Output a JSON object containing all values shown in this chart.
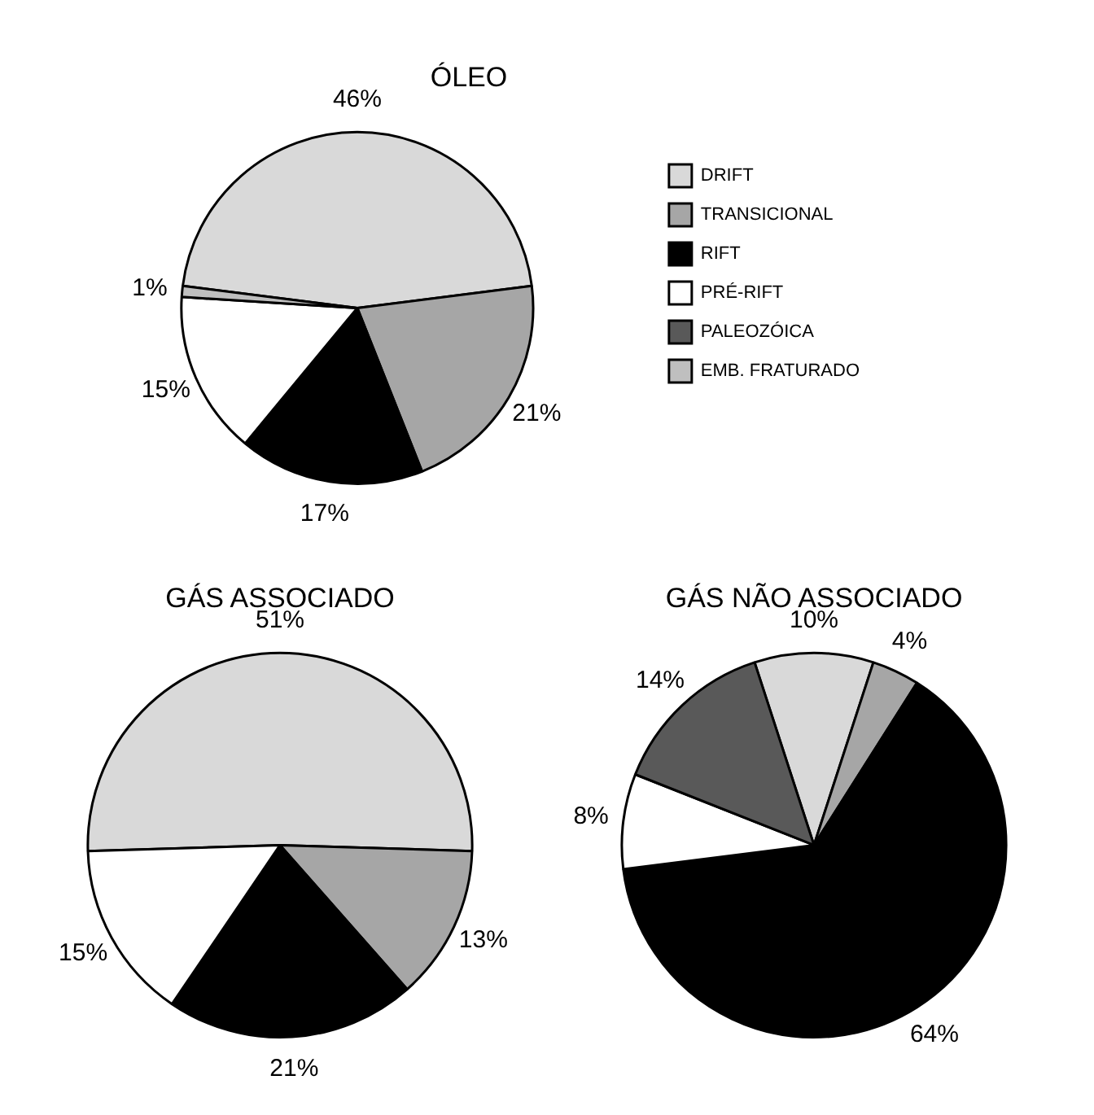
{
  "chart_data": [
    {
      "type": "pie",
      "title": "ÓLEO",
      "categories": [
        "DRIFT",
        "TRANSICIONAL",
        "RIFT",
        "PRÉ-RIFT",
        "PALEOZÓICA",
        "EMB. FRATURADO"
      ],
      "values": [
        46,
        21,
        17,
        15,
        null,
        1
      ],
      "value_labels": [
        "46%",
        "21%",
        "17%",
        "15%",
        null,
        "1%"
      ],
      "colors": [
        "#d9d9d9",
        "#a6a6a6",
        "#000000",
        "#ffffff",
        "#595959",
        "#bfbfbf"
      ],
      "legend": "right"
    },
    {
      "type": "pie",
      "title": "GÁS ASSOCIADO",
      "categories": [
        null,
        null,
        null,
        null,
        null,
        null
      ],
      "values": [
        51,
        13,
        21,
        15,
        null,
        null
      ],
      "value_labels": [
        "51%",
        "13%",
        "21%",
        "15%",
        null,
        null
      ],
      "colors": [
        "#d9d9d9",
        "#a6a6a6",
        "#000000",
        "#ffffff",
        "#595959",
        "#bfbfbf"
      ]
    },
    {
      "type": "pie",
      "title": "GÁS NÃO ASSOCIADO",
      "categories": [
        null,
        null,
        null,
        null,
        null,
        null
      ],
      "values": [
        10,
        4,
        64,
        8,
        14,
        null
      ],
      "value_labels": [
        "10%",
        "4%",
        "64%",
        "8%",
        "14%",
        null
      ],
      "colors": [
        "#d9d9d9",
        "#a6a6a6",
        "#000000",
        "#ffffff",
        "#595959",
        "#bfbfbf"
      ]
    }
  ]
}
